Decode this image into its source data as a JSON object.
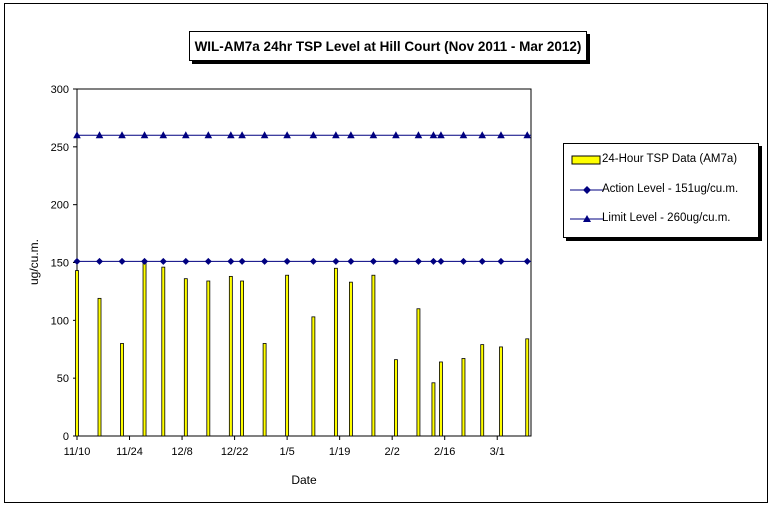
{
  "chart_data": {
    "type": "bar",
    "title": "WIL-AM7a 24hr TSP Level at Hill Court (Nov 2011 - Mar 2012)",
    "xlabel": "Date",
    "ylabel": "ug/cu.m.",
    "ylim": [
      0,
      300
    ],
    "yticks": [
      "0",
      "50",
      "100",
      "150",
      "200",
      "250",
      "300"
    ],
    "xlim": [
      "2011-11-10",
      "2012-03-10"
    ],
    "xticks": [
      {
        "label": "11/10",
        "date": "2011-11-10"
      },
      {
        "label": "11/24",
        "date": "2011-11-24"
      },
      {
        "label": "12/8",
        "date": "2011-12-08"
      },
      {
        "label": "12/22",
        "date": "2011-12-22"
      },
      {
        "label": "1/5",
        "date": "2012-01-05"
      },
      {
        "label": "1/19",
        "date": "2012-01-19"
      },
      {
        "label": "2/2",
        "date": "2012-02-02"
      },
      {
        "label": "2/16",
        "date": "2012-02-16"
      },
      {
        "label": "3/1",
        "date": "2012-03-01"
      }
    ],
    "grid": false,
    "legend_position": "right",
    "series": [
      {
        "name": "24-Hour TSP Data (AM7a)",
        "type": "bar",
        "color": "#ffff00",
        "points": [
          {
            "x": "2011-11-10",
            "y": 143
          },
          {
            "x": "2011-11-16",
            "y": 119
          },
          {
            "x": "2011-11-22",
            "y": 80
          },
          {
            "x": "2011-11-28",
            "y": 150
          },
          {
            "x": "2011-12-03",
            "y": 146
          },
          {
            "x": "2011-12-09",
            "y": 136
          },
          {
            "x": "2011-12-15",
            "y": 134
          },
          {
            "x": "2011-12-21",
            "y": 138
          },
          {
            "x": "2011-12-24",
            "y": 134
          },
          {
            "x": "2011-12-30",
            "y": 80
          },
          {
            "x": "2012-01-05",
            "y": 139
          },
          {
            "x": "2012-01-12",
            "y": 103
          },
          {
            "x": "2012-01-18",
            "y": 145
          },
          {
            "x": "2012-01-22",
            "y": 133
          },
          {
            "x": "2012-01-28",
            "y": 139
          },
          {
            "x": "2012-02-03",
            "y": 66
          },
          {
            "x": "2012-02-09",
            "y": 110
          },
          {
            "x": "2012-02-13",
            "y": 46
          },
          {
            "x": "2012-02-15",
            "y": 64
          },
          {
            "x": "2012-02-21",
            "y": 67
          },
          {
            "x": "2012-02-26",
            "y": 79
          },
          {
            "x": "2012-03-02",
            "y": 77
          },
          {
            "x": "2012-03-09",
            "y": 84
          }
        ]
      },
      {
        "name": "Action Level - 151ug/cu.m.",
        "type": "line",
        "color": "#000080",
        "marker": "diamond",
        "value": 151
      },
      {
        "name": "Limit Level - 260ug/cu.m.",
        "type": "line",
        "color": "#000080",
        "marker": "triangle",
        "value": 260
      }
    ]
  }
}
